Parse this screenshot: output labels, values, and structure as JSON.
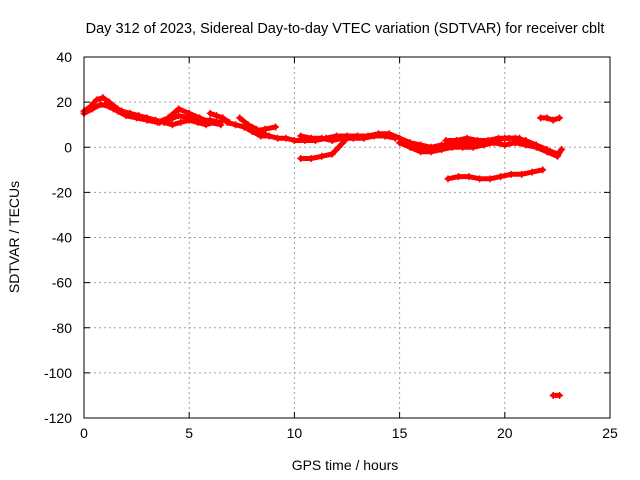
{
  "chart_data": {
    "type": "scatter",
    "title": "Day 312 of 2023, Sidereal Day-to-day VTEC variation (SDTVAR) for receiver cblt",
    "xlabel": "GPS time / hours",
    "ylabel": "SDTVAR / TECUs",
    "xlim": [
      0,
      25
    ],
    "ylim": [
      -120,
      40
    ],
    "xticks": [
      0,
      5,
      10,
      15,
      20,
      25
    ],
    "yticks": [
      -120,
      -100,
      -80,
      -60,
      -40,
      -20,
      0,
      20,
      40
    ],
    "grid": true,
    "legend": "none",
    "color": "#ff0000",
    "tracks": [
      [
        [
          0.0,
          16
        ],
        [
          0.3,
          18
        ],
        [
          0.6,
          21
        ],
        [
          0.9,
          22
        ],
        [
          1.2,
          20
        ],
        [
          1.6,
          17
        ],
        [
          2.0,
          15
        ],
        [
          2.4,
          14
        ],
        [
          2.8,
          13
        ],
        [
          3.2,
          12
        ],
        [
          3.6,
          11
        ],
        [
          4.0,
          12
        ],
        [
          4.5,
          14
        ],
        [
          5.0,
          13
        ],
        [
          5.5,
          12
        ],
        [
          6.0,
          12
        ],
        [
          6.5,
          11
        ]
      ],
      [
        [
          0.0,
          15
        ],
        [
          0.4,
          17
        ],
        [
          0.8,
          19
        ],
        [
          1.2,
          18
        ],
        [
          1.6,
          16
        ],
        [
          2.0,
          14
        ],
        [
          2.5,
          13
        ],
        [
          3.0,
          12
        ],
        [
          3.5,
          11
        ],
        [
          4.0,
          13
        ],
        [
          4.5,
          17
        ],
        [
          5.0,
          15
        ],
        [
          5.5,
          13
        ],
        [
          6.0,
          11
        ],
        [
          6.5,
          10
        ]
      ],
      [
        [
          1.0,
          19
        ],
        [
          1.4,
          17
        ],
        [
          1.8,
          16
        ],
        [
          2.2,
          15
        ],
        [
          2.6,
          14
        ],
        [
          3.0,
          13
        ],
        [
          3.4,
          12
        ],
        [
          3.8,
          11
        ],
        [
          4.2,
          10
        ],
        [
          4.6,
          11
        ],
        [
          5.0,
          12
        ],
        [
          5.4,
          11
        ],
        [
          5.8,
          10
        ],
        [
          6.2,
          11
        ]
      ],
      [
        [
          6.0,
          15
        ],
        [
          6.3,
          14
        ],
        [
          6.6,
          13
        ],
        [
          6.9,
          11
        ]
      ],
      [
        [
          6.8,
          11
        ],
        [
          7.2,
          10
        ],
        [
          7.6,
          9
        ],
        [
          8.0,
          7
        ],
        [
          8.4,
          5
        ],
        [
          8.8,
          5
        ],
        [
          9.2,
          4
        ],
        [
          9.6,
          4
        ],
        [
          10.0,
          3
        ],
        [
          10.5,
          3
        ],
        [
          11.0,
          3
        ],
        [
          11.5,
          4
        ],
        [
          12.0,
          5
        ],
        [
          12.5,
          5
        ],
        [
          13.0,
          5
        ],
        [
          13.5,
          5
        ],
        [
          14.0,
          6
        ],
        [
          14.5,
          6
        ],
        [
          15.0,
          4
        ],
        [
          15.5,
          2
        ],
        [
          16.0,
          1
        ],
        [
          16.5,
          0
        ],
        [
          17.0,
          1
        ],
        [
          17.5,
          1
        ],
        [
          18.0,
          2
        ],
        [
          18.5,
          2
        ],
        [
          19.0,
          2
        ],
        [
          19.5,
          3
        ],
        [
          20.0,
          4
        ],
        [
          20.5,
          4
        ],
        [
          21.0,
          3
        ],
        [
          21.5,
          1
        ],
        [
          22.0,
          -1
        ],
        [
          22.5,
          -3
        ]
      ],
      [
        [
          7.4,
          13
        ],
        [
          7.8,
          10
        ],
        [
          8.2,
          8
        ],
        [
          8.6,
          6
        ]
      ],
      [
        [
          8.0,
          7
        ],
        [
          8.6,
          8
        ],
        [
          9.1,
          9
        ]
      ],
      [
        [
          10.3,
          5
        ],
        [
          10.8,
          4
        ],
        [
          11.3,
          4
        ],
        [
          11.8,
          3
        ],
        [
          12.3,
          4
        ],
        [
          12.8,
          4
        ],
        [
          13.3,
          4
        ],
        [
          13.8,
          5
        ],
        [
          14.3,
          5
        ],
        [
          14.8,
          4
        ]
      ],
      [
        [
          10.3,
          -5
        ],
        [
          10.8,
          -5
        ],
        [
          11.3,
          -4
        ],
        [
          11.8,
          -3
        ],
        [
          12.1,
          0
        ],
        [
          12.4,
          3
        ]
      ],
      [
        [
          15.0,
          2
        ],
        [
          15.5,
          0
        ],
        [
          16.0,
          -2
        ],
        [
          16.5,
          -2
        ],
        [
          17.0,
          -1
        ],
        [
          17.5,
          0
        ],
        [
          18.0,
          0
        ],
        [
          18.5,
          0
        ],
        [
          19.0,
          1
        ],
        [
          19.5,
          2
        ],
        [
          20.0,
          1
        ],
        [
          20.5,
          2
        ],
        [
          21.0,
          1
        ],
        [
          21.5,
          0
        ],
        [
          22.0,
          -2
        ],
        [
          22.5,
          -4
        ],
        [
          22.7,
          -1
        ]
      ],
      [
        [
          17.2,
          3
        ],
        [
          17.7,
          3
        ],
        [
          18.2,
          4
        ],
        [
          18.7,
          3
        ],
        [
          19.2,
          3
        ],
        [
          19.7,
          4
        ],
        [
          20.2,
          4
        ],
        [
          20.7,
          4
        ]
      ],
      [
        [
          15.7,
          1
        ],
        [
          16.2,
          0
        ],
        [
          16.7,
          0
        ],
        [
          17.2,
          0
        ]
      ],
      [
        [
          17.3,
          -14
        ],
        [
          17.8,
          -13
        ],
        [
          18.3,
          -13
        ],
        [
          18.8,
          -14
        ],
        [
          19.3,
          -14
        ],
        [
          19.8,
          -13
        ],
        [
          20.3,
          -12
        ],
        [
          20.8,
          -12
        ],
        [
          21.3,
          -11
        ],
        [
          21.8,
          -10
        ]
      ],
      [
        [
          21.7,
          13
        ],
        [
          22.0,
          13
        ],
        [
          22.3,
          12
        ],
        [
          22.6,
          13
        ]
      ],
      [
        [
          22.3,
          -110
        ],
        [
          22.6,
          -110
        ]
      ]
    ]
  }
}
